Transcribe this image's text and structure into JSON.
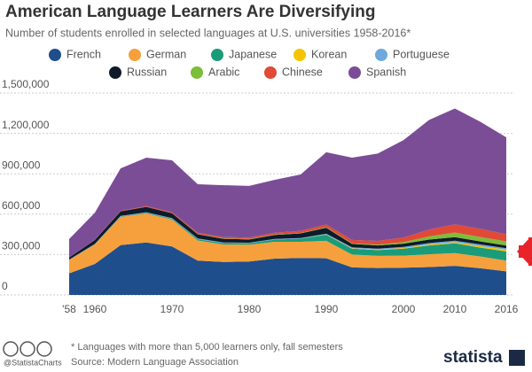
{
  "chart_data": {
    "type": "stacked_area",
    "title": "American Language Learners Are Diversifying",
    "subtitle": "Number of students enrolled in selected languages at U.S. universities 1958-2016*",
    "categories": [
      "'58",
      "1960",
      null,
      null,
      "1970",
      null,
      null,
      "1980",
      null,
      null,
      "1990",
      null,
      null,
      "2000",
      null,
      "2010",
      null,
      "2016"
    ],
    "series": [
      {
        "name": "French",
        "color": "#1f4e8c",
        "values": [
          160000,
          230000,
          370000,
          390000,
          360000,
          255000,
          245000,
          248000,
          270000,
          275000,
          272000,
          205000,
          200000,
          202000,
          207000,
          216000,
          198000,
          175000
        ]
      },
      {
        "name": "German",
        "color": "#f5a03c",
        "values": [
          100000,
          145000,
          210000,
          215000,
          200000,
          150000,
          130000,
          125000,
          125000,
          120000,
          130000,
          95000,
          90000,
          90000,
          95000,
          95000,
          87000,
          80000
        ]
      },
      {
        "name": "Japanese",
        "color": "#1a9c7a",
        "values": [
          1000,
          2000,
          3000,
          4000,
          6000,
          9000,
          10000,
          11000,
          16000,
          23000,
          45000,
          44000,
          43000,
          52000,
          66000,
          73000,
          66000,
          68000
        ]
      },
      {
        "name": "Korean",
        "color": "#f5c400",
        "values": [
          0,
          0,
          0,
          0,
          0,
          0,
          0,
          0,
          0,
          0,
          2000,
          3000,
          4000,
          5000,
          7000,
          8000,
          12000,
          14000
        ]
      },
      {
        "name": "Portuguese",
        "color": "#6fa8dc",
        "values": [
          1000,
          2000,
          4000,
          5000,
          5000,
          5000,
          5000,
          4000,
          5000,
          5000,
          6000,
          7000,
          7000,
          8000,
          11000,
          11000,
          12000,
          10000
        ]
      },
      {
        "name": "Russian",
        "color": "#0d1b2a",
        "values": [
          16000,
          30000,
          34000,
          40000,
          36000,
          32000,
          27000,
          24000,
          30000,
          34000,
          44000,
          25000,
          24000,
          24000,
          25000,
          26000,
          22000,
          20000
        ]
      },
      {
        "name": "Arabic",
        "color": "#7cbd3a",
        "values": [
          0,
          0,
          0,
          0,
          1000,
          1000,
          3000,
          3000,
          3000,
          3000,
          4000,
          4000,
          5000,
          11000,
          24000,
          35000,
          33000,
          31000
        ]
      },
      {
        "name": "Chinese",
        "color": "#e04a36",
        "values": [
          0,
          2000,
          3000,
          6000,
          6000,
          10000,
          10000,
          11000,
          13000,
          16000,
          20000,
          26000,
          28000,
          34000,
          51000,
          61000,
          61000,
          53000
        ]
      },
      {
        "name": "Spanish",
        "color": "#7b4d96",
        "values": [
          137000,
          200000,
          316000,
          360000,
          386000,
          360000,
          385000,
          384000,
          393000,
          419000,
          537000,
          611000,
          649000,
          724000,
          814000,
          860000,
          794000,
          719000
        ]
      }
    ],
    "ylim": [
      0,
      1500000
    ],
    "yticks": [
      0,
      {
        "value": 300000,
        "label": "300,000"
      },
      {
        "value": 600000,
        "label": "600,000"
      },
      {
        "value": 900000,
        "label": "900,000"
      },
      {
        "value": 1200000,
        "label": "1,200,000"
      },
      {
        "value": 1500000,
        "label": "1,500,000"
      }
    ],
    "grid": true,
    "note": "* Languages with more than 5,000 learners only, fall semesters",
    "source": "Source: Modern Language Association",
    "credit": "@StatistaCharts",
    "brand": "statista"
  }
}
